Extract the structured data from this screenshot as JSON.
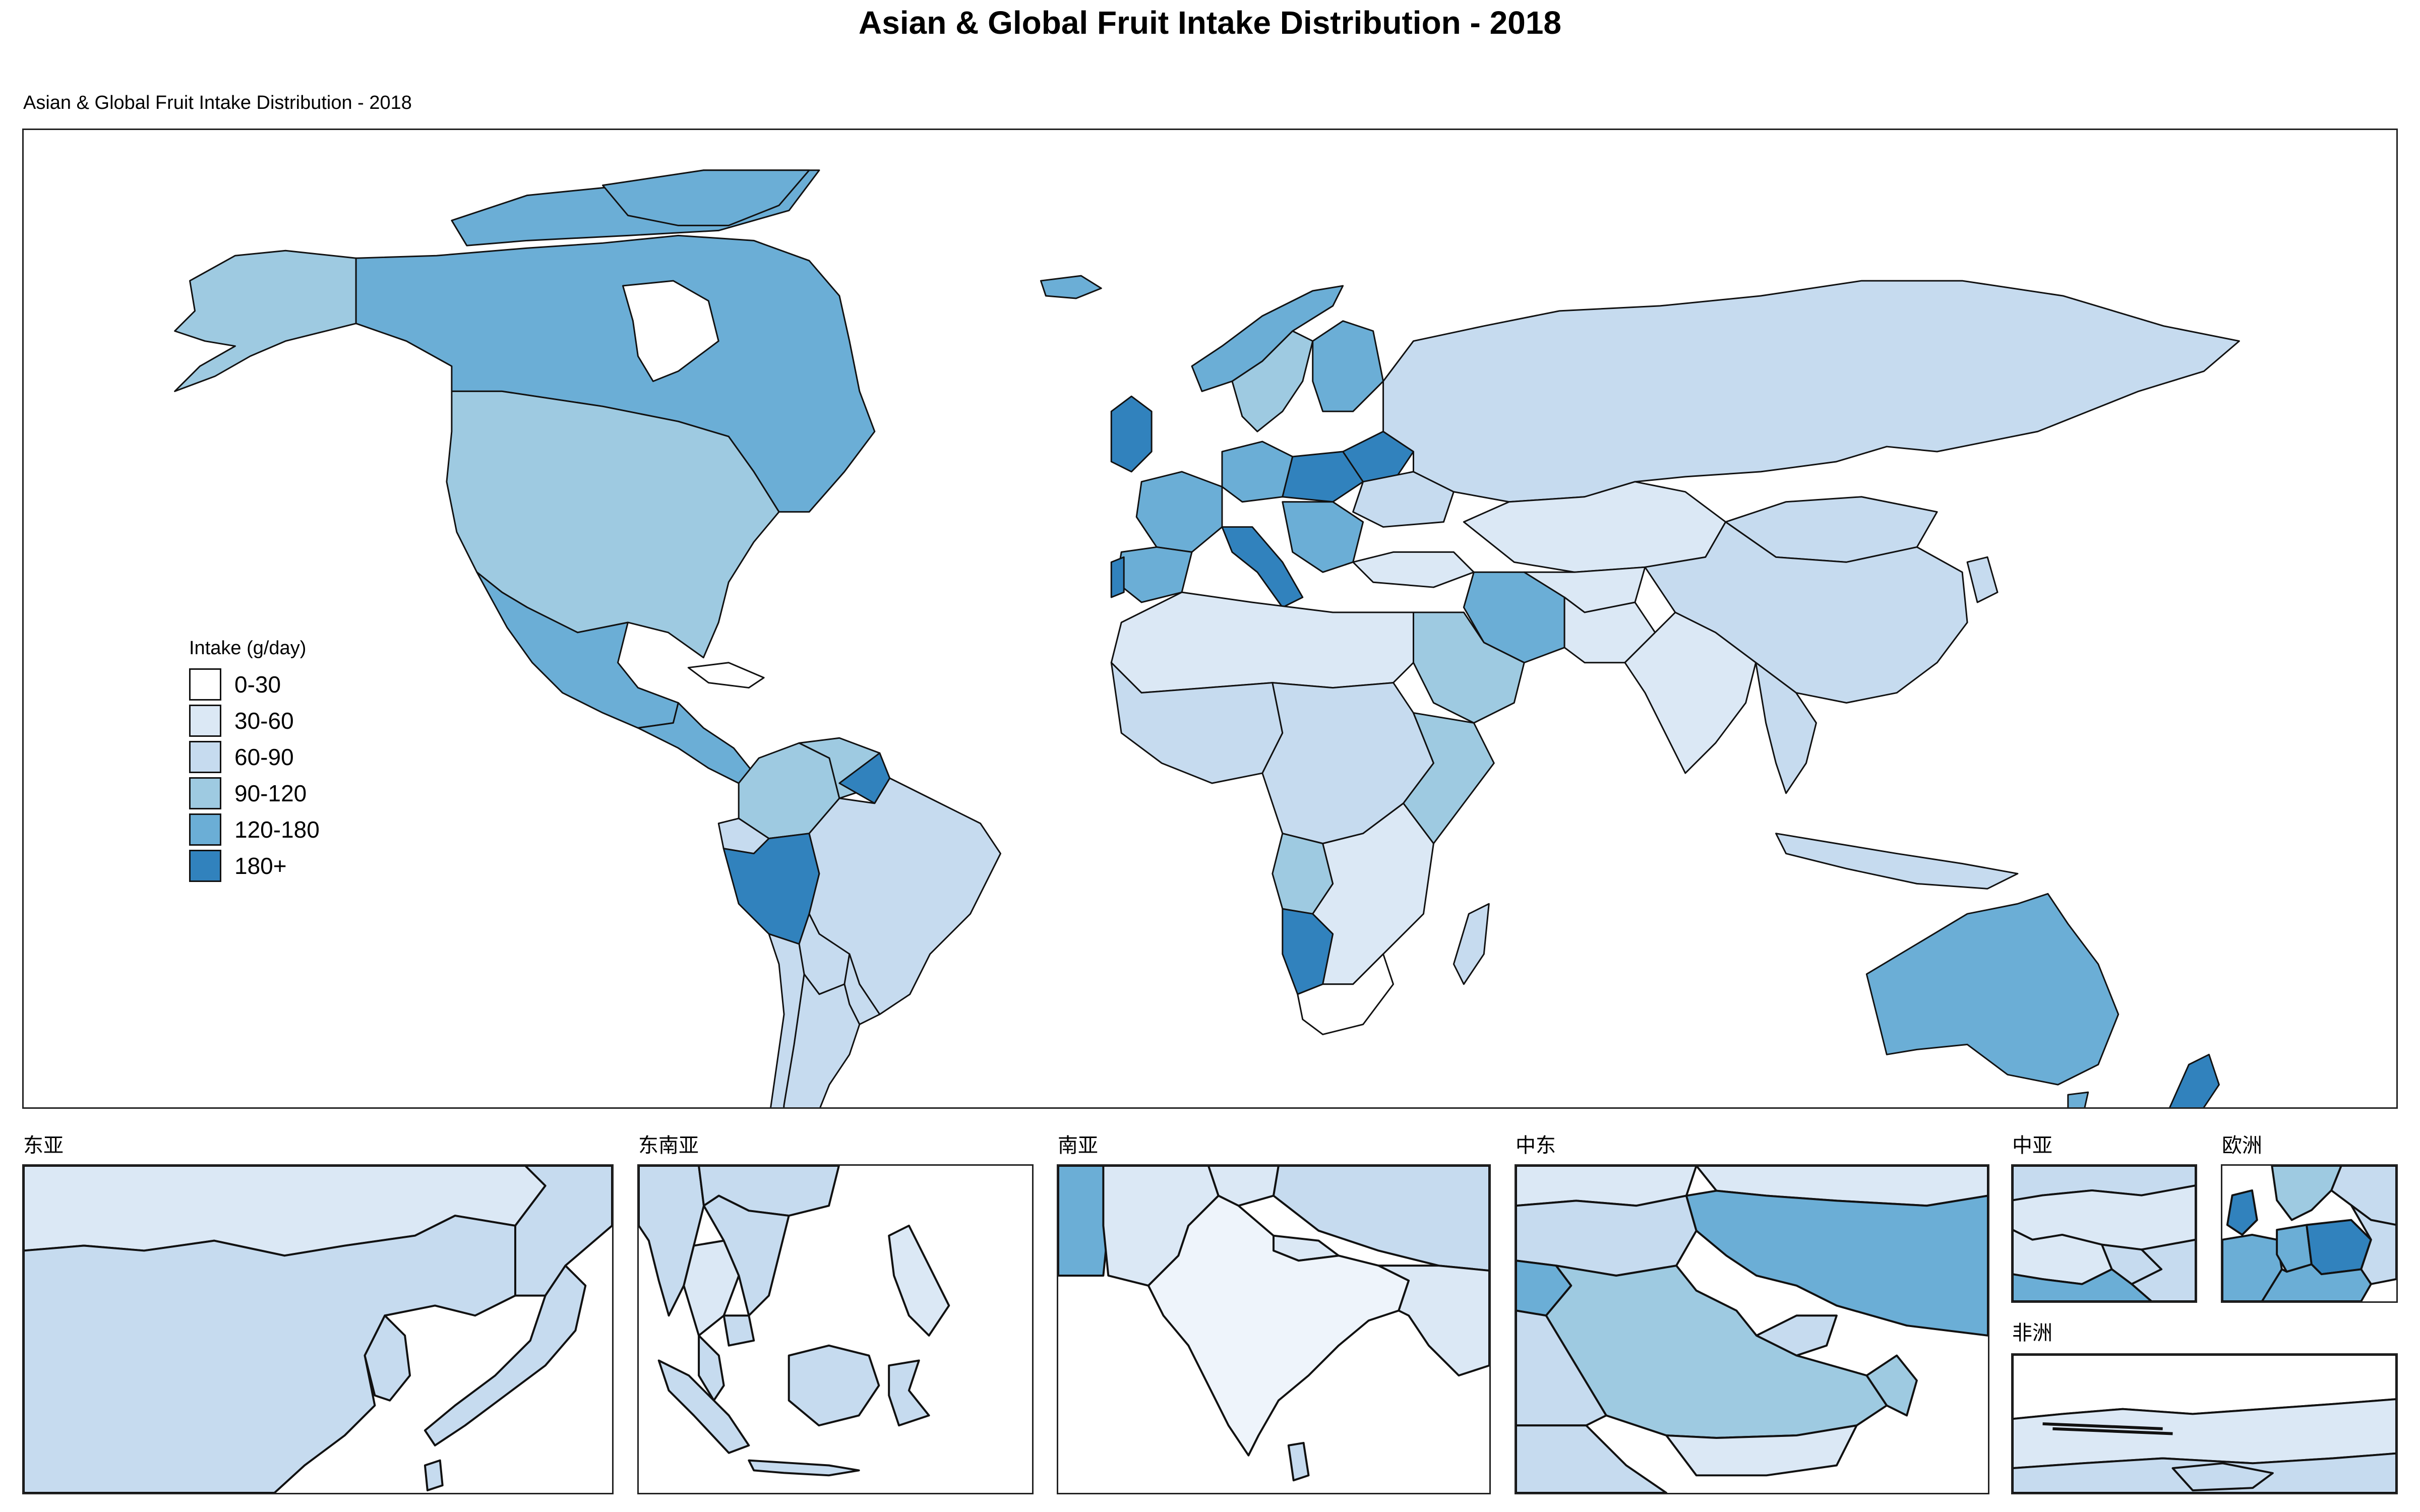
{
  "title": "Asian & Global Fruit Intake Distribution - 2018",
  "subtitle": "Asian & Global Fruit Intake Distribution - 2018",
  "legend": {
    "title": "Intake (g/day)",
    "bins": [
      {
        "label": "0-30",
        "color": "#ffffff"
      },
      {
        "label": "30-60",
        "color": "#dbe8f5"
      },
      {
        "label": "60-90",
        "color": "#c6dbef"
      },
      {
        "label": "90-120",
        "color": "#9ecae1"
      },
      {
        "label": "120-180",
        "color": "#6baed6"
      },
      {
        "label": "180+",
        "color": "#3182bd"
      }
    ]
  },
  "insets": [
    {
      "id": "east-asia",
      "label": "东亚"
    },
    {
      "id": "southeast-asia",
      "label": "东南亚"
    },
    {
      "id": "south-asia",
      "label": "南亚"
    },
    {
      "id": "middle-east",
      "label": "中东"
    },
    {
      "id": "central-asia",
      "label": "中亚"
    },
    {
      "id": "europe",
      "label": "欧洲"
    },
    {
      "id": "africa",
      "label": "非洲"
    }
  ]
}
